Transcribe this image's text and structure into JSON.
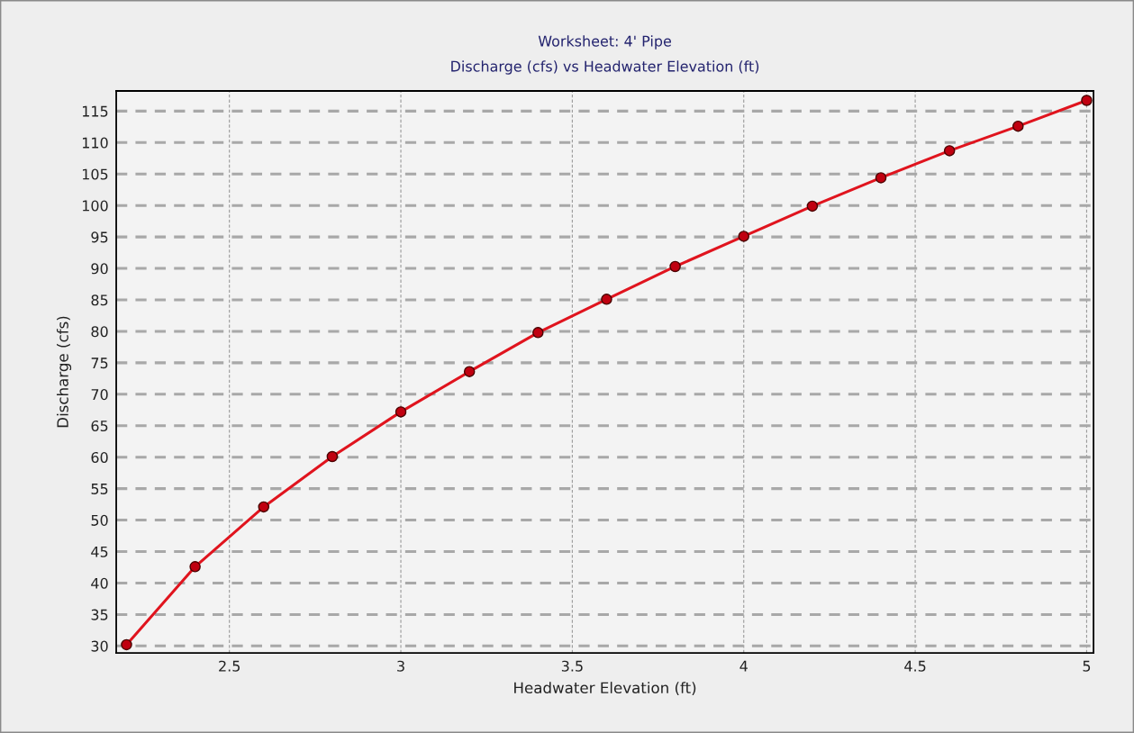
{
  "chart_data": {
    "type": "line",
    "title": "Worksheet: 4' Pipe",
    "subtitle": "Discharge (cfs) vs Headwater Elevation (ft)",
    "xlabel": "Headwater Elevation (ft)",
    "ylabel": "Discharge (cfs)",
    "x": [
      2.2,
      2.4,
      2.6,
      2.8,
      3.0,
      3.2,
      3.4,
      3.6,
      3.8,
      4.0,
      4.2,
      4.4,
      4.6,
      4.8,
      5.0
    ],
    "series": [
      {
        "color": "#e0141e",
        "values": [
          30.2,
          42.6,
          52.1,
          60.1,
          67.2,
          73.6,
          79.8,
          85.1,
          90.3,
          95.1,
          99.9,
          104.4,
          108.7,
          112.6,
          116.7
        ]
      }
    ],
    "marker": "circle",
    "line_style": "solid",
    "xlim": [
      2.17,
      5.02
    ],
    "ylim": [
      28.9,
      118.2
    ],
    "xticks": [
      2.5,
      3,
      3.5,
      4,
      4.5,
      5
    ],
    "yticks": [
      30,
      35,
      40,
      45,
      50,
      55,
      60,
      65,
      70,
      75,
      80,
      85,
      90,
      95,
      100,
      105,
      110,
      115
    ],
    "grid": true
  }
}
